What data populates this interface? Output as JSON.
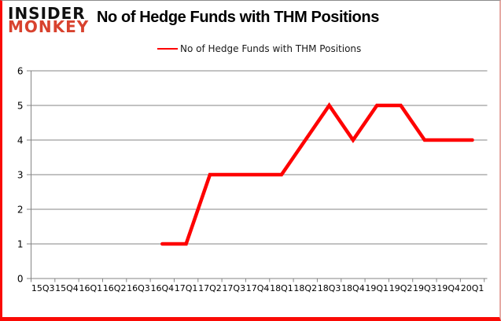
{
  "logo": {
    "line1": "INSIDER",
    "line2": "MONKEY"
  },
  "header": {
    "title": "No of Hedge Funds with THM Positions"
  },
  "legend": {
    "label": "No of Hedge Funds with THM Positions",
    "swatch_color": "#fe0000"
  },
  "chart_data": {
    "type": "line",
    "title": "No of Hedge Funds with THM Positions",
    "categories": [
      "15Q3",
      "15Q4",
      "16Q1",
      "16Q2",
      "16Q3",
      "16Q4",
      "17Q1",
      "17Q2",
      "17Q3",
      "17Q4",
      "18Q1",
      "18Q2",
      "18Q3",
      "18Q4",
      "19Q1",
      "19Q2",
      "19Q3",
      "19Q4",
      "20Q1"
    ],
    "series": [
      {
        "name": "No of Hedge Funds with THM Positions",
        "color": "#fe0000",
        "values": [
          null,
          null,
          null,
          null,
          null,
          1,
          1,
          3,
          3,
          3,
          3,
          4,
          5,
          4,
          5,
          5,
          4,
          4,
          4
        ]
      }
    ],
    "xlabel": "",
    "ylabel": "",
    "ylim": [
      0,
      6
    ],
    "yticks": [
      0,
      1,
      2,
      3,
      4,
      5,
      6
    ],
    "grid": "horizontal",
    "legend_position": "top-center"
  },
  "colors": {
    "accent_red": "#fe0000",
    "logo_red": "#d8422e",
    "grid_gray": "#848484",
    "frame_red": "#fa0a05",
    "text_black": "#000000"
  }
}
